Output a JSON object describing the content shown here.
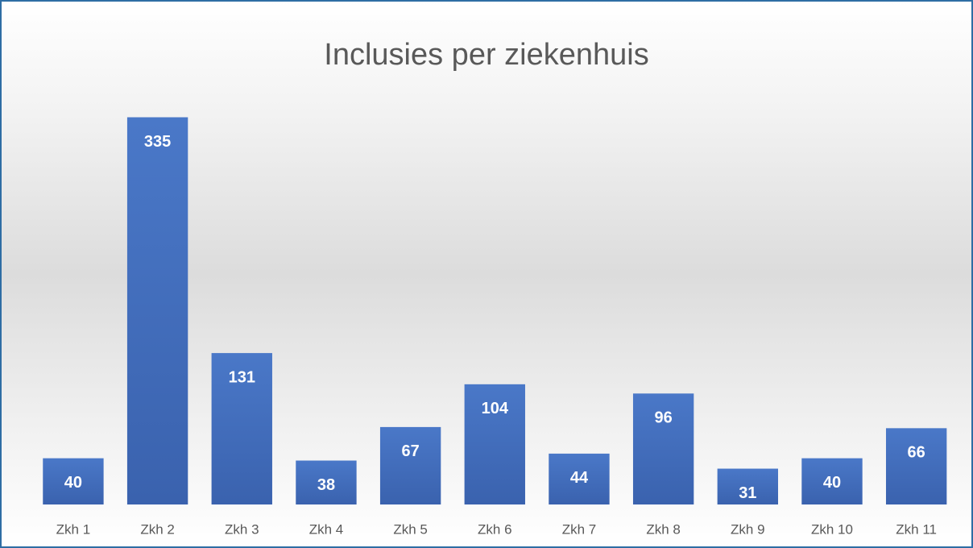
{
  "chart_data": {
    "type": "bar",
    "title": "Inclusies per ziekenhuis",
    "categories": [
      "Zkh 1",
      "Zkh 2",
      "Zkh 3",
      "Zkh 4",
      "Zkh 5",
      "Zkh 6",
      "Zkh 7",
      "Zkh 8",
      "Zkh 9",
      "Zkh 10",
      "Zkh 11"
    ],
    "values": [
      40,
      335,
      131,
      38,
      67,
      104,
      44,
      96,
      31,
      40,
      66
    ],
    "color": "#4472c4",
    "ylim": [
      0,
      350
    ]
  }
}
